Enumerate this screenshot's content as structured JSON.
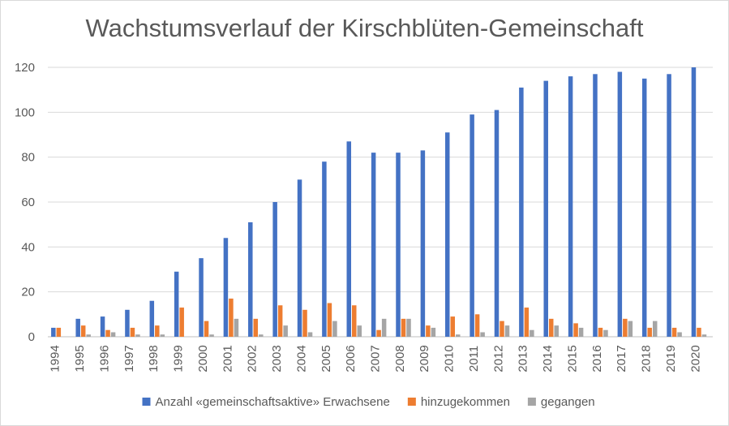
{
  "chart_data": {
    "type": "bar",
    "title": "Wachstumsverlauf der Kirschblüten-Gemeinschaft",
    "xlabel": "",
    "ylabel": "",
    "ylim": [
      0,
      120
    ],
    "yticks": [
      0,
      20,
      40,
      60,
      80,
      100,
      120
    ],
    "grid": true,
    "legend_position": "bottom",
    "categories": [
      "1994",
      "1995",
      "1996",
      "1997",
      "1998",
      "1999",
      "2000",
      "2001",
      "2002",
      "2003",
      "2004",
      "2005",
      "2006",
      "2007",
      "2008",
      "2009",
      "2010",
      "2011",
      "2012",
      "2013",
      "2014",
      "2015",
      "2016",
      "2017",
      "2018",
      "2019",
      "2020"
    ],
    "series": [
      {
        "name": "Anzahl «gemeinschaftsaktive» Erwachsene",
        "color": "#4472c4",
        "values": [
          4,
          8,
          9,
          12,
          16,
          29,
          35,
          44,
          51,
          60,
          70,
          78,
          87,
          82,
          82,
          83,
          91,
          99,
          101,
          111,
          114,
          116,
          117,
          118,
          115,
          117,
          120
        ]
      },
      {
        "name": "hinzugekommen",
        "color": "#ed7d31",
        "values": [
          4,
          5,
          3,
          4,
          5,
          13,
          7,
          17,
          8,
          14,
          12,
          15,
          14,
          3,
          8,
          5,
          9,
          10,
          7,
          13,
          8,
          6,
          4,
          8,
          4,
          4,
          4
        ]
      },
      {
        "name": "gegangen",
        "color": "#a5a5a5",
        "values": [
          0,
          1,
          2,
          1,
          1,
          0,
          1,
          8,
          1,
          5,
          2,
          7,
          5,
          8,
          8,
          4,
          1,
          2,
          5,
          3,
          5,
          4,
          3,
          7,
          7,
          2,
          1
        ]
      }
    ]
  }
}
